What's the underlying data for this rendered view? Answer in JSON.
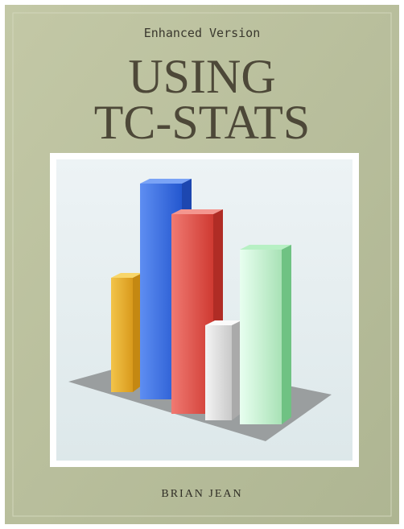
{
  "subtitle": "Enhanced Version",
  "title_lines": [
    "USING",
    "TC-STATS"
  ],
  "author": "BRIAN JEAN"
}
